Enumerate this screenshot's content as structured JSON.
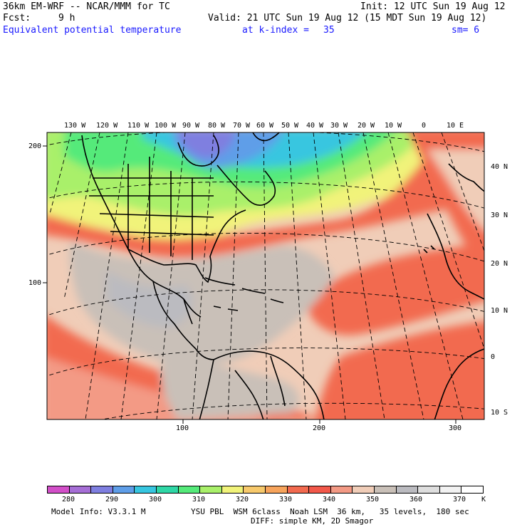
{
  "header": {
    "model_line": "36km EM-WRF -- NCAR/MMM for TC",
    "init_line": "Init: 12 UTC Sun 19 Aug 12",
    "fcst_label": "Fcst:",
    "fcst_value": "9 h",
    "valid_line": "Valid: 21 UTC Sun 19 Aug 12 (15 MDT Sun 19 Aug 12)",
    "field_name": "Equivalent potential temperature",
    "level_label": "at k-index =",
    "level_value": "35",
    "smoothing": "sm= 6"
  },
  "map": {
    "top_lon_labels": [
      "130 W",
      "120 W",
      "110 W",
      "100 W",
      "90 W",
      "80 W",
      "70 W",
      "60 W",
      "50 W",
      "40 W",
      "30 W",
      "20 W",
      "10 W",
      "0",
      "10 E"
    ],
    "right_lat_labels": [
      "40 N",
      "30 N",
      "20 N",
      "10 N",
      "0",
      "10 S"
    ],
    "left_grid_labels": [
      "200",
      "100"
    ],
    "bottom_grid_labels": [
      "100",
      "200",
      "300"
    ]
  },
  "colorbar": {
    "colors": [
      "#d24fc8",
      "#a66fd6",
      "#7f7fe0",
      "#5f9ee8",
      "#37c6e0",
      "#2fd7a6",
      "#55ea7a",
      "#a9f06a",
      "#f1f37a",
      "#f7c96c",
      "#f7a45c",
      "#f26a4f",
      "#f2584a",
      "#f39a85",
      "#f0cdb8",
      "#c9c0b8",
      "#bbbbc0",
      "#dedede",
      "#f2f2f2",
      "#ffffff"
    ],
    "labels": [
      "280",
      "290",
      "300",
      "310",
      "320",
      "330",
      "340",
      "350",
      "360",
      "370"
    ],
    "unit": "K"
  },
  "footer": {
    "model_info": "Model Info: V3.3.1 M",
    "physics": "YSU PBL  WSM 6class  Noah LSM  36 km,   35 levels,  180 sec",
    "diffusion": "DIFF: simple KM, 2D Smagor"
  }
}
